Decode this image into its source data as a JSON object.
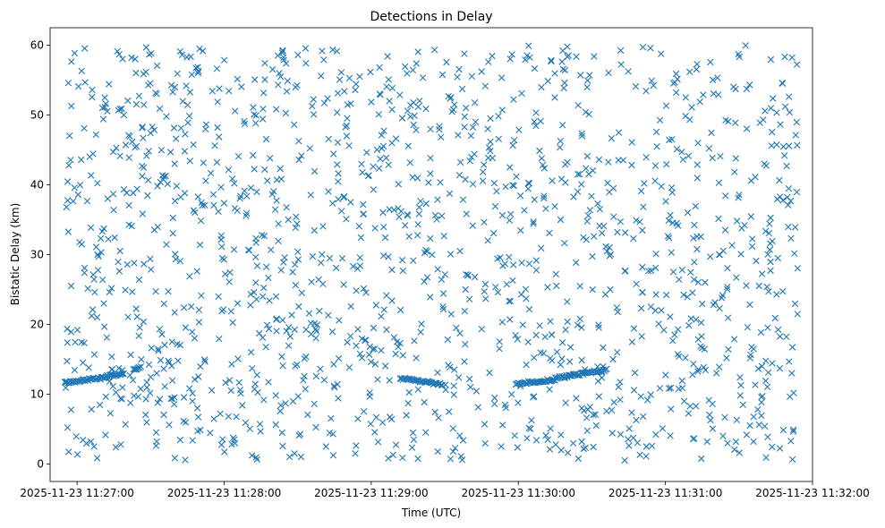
{
  "chart_data": {
    "type": "scatter",
    "title": "Detections in Delay",
    "xlabel": "Time (UTC)",
    "ylabel": "Bistatic Delay (km)",
    "x_axis": "time",
    "xlim": [
      "2025-11-23 11:26:49",
      "2025-11-23 11:32:00"
    ],
    "ylim": [
      -2.5,
      62.5
    ],
    "x_ticks": [
      "2025-11-23 11:27:00",
      "2025-11-23 11:28:00",
      "2025-11-23 11:29:00",
      "2025-11-23 11:30:00",
      "2025-11-23 11:31:00",
      "2025-11-23 11:32:00"
    ],
    "y_ticks": [
      0,
      10,
      20,
      30,
      40,
      50,
      60
    ],
    "marker": "x",
    "color": "#1f77b4",
    "grid": false,
    "tracks": [
      {
        "start": [
          "2025-11-23 11:26:55",
          11.7
        ],
        "end": [
          "2025-11-23 11:27:10",
          12.3
        ]
      },
      {
        "start": [
          "2025-11-23 11:27:10",
          12.4
        ],
        "end": [
          "2025-11-23 11:27:19",
          13.0
        ]
      },
      {
        "start": [
          "2025-11-23 11:27:23",
          13.5
        ],
        "end": [
          "2025-11-23 11:27:26",
          14.0
        ]
      },
      {
        "start": [
          "2025-11-23 11:29:12",
          12.3
        ],
        "end": [
          "2025-11-23 11:29:29",
          11.4
        ]
      },
      {
        "start": [
          "2025-11-23 11:29:59",
          11.5
        ],
        "end": [
          "2025-11-23 11:30:15",
          12.1
        ]
      },
      {
        "start": [
          "2025-11-23 11:30:15",
          12.3
        ],
        "end": [
          "2025-11-23 11:30:36",
          13.5
        ]
      }
    ],
    "clutter": {
      "t_range": [
        "2025-11-23 11:26:55",
        "2025-11-23 11:31:54"
      ],
      "y_range": [
        0.5,
        60
      ],
      "count": 1500
    }
  }
}
